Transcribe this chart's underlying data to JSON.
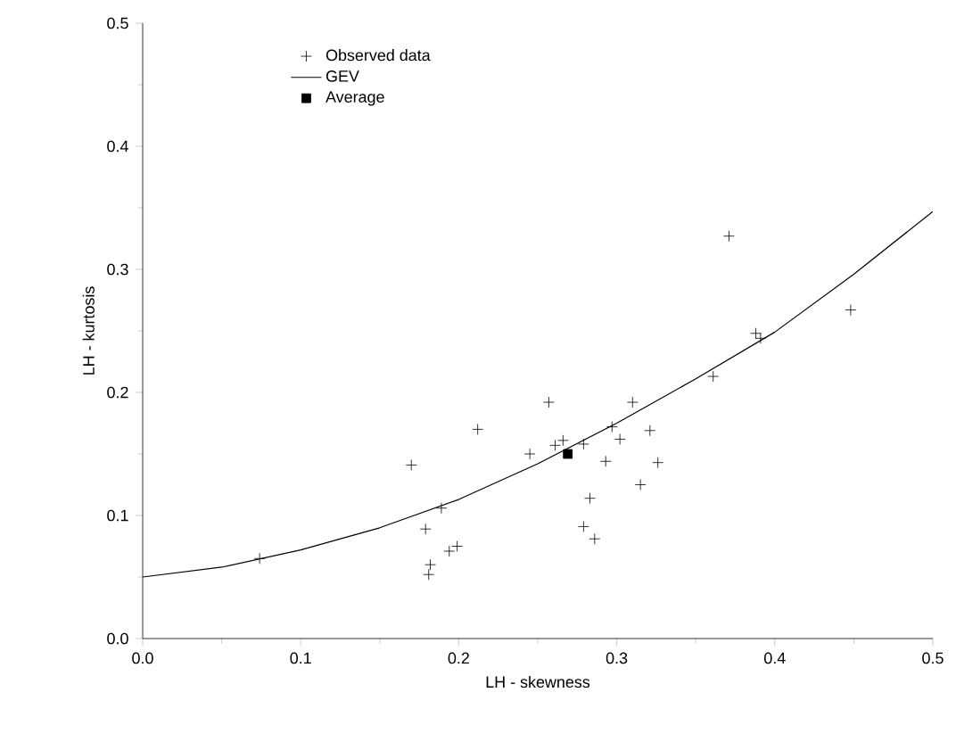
{
  "chart_data": {
    "type": "scatter",
    "xlabel": "LH - skewness",
    "ylabel": "LH - kurtosis",
    "xlim": [
      0,
      0.5
    ],
    "ylim": [
      0,
      0.5
    ],
    "xticks": [
      {
        "value": 0,
        "label": "0.0"
      },
      0.1,
      0.2,
      0.3,
      0.4,
      0.5
    ],
    "yticks": [
      {
        "value": 0,
        "label": "0.0"
      },
      0.1,
      0.2,
      0.3,
      0.4,
      0.5
    ],
    "legend": "top left",
    "grid": false,
    "series": [
      {
        "name": "Observed data",
        "marker": "cross",
        "color": "#000000",
        "x": [
          0.074,
          0.17,
          0.179,
          0.182,
          0.181,
          0.189,
          0.194,
          0.199,
          0.212,
          0.245,
          0.257,
          0.261,
          0.266,
          0.279,
          0.283,
          0.279,
          0.286,
          0.293,
          0.297,
          0.302,
          0.31,
          0.315,
          0.321,
          0.326,
          0.361,
          0.371,
          0.388,
          0.391,
          0.448
        ],
        "values": [
          0.065,
          0.141,
          0.089,
          0.06,
          0.052,
          0.106,
          0.071,
          0.075,
          0.17,
          0.15,
          0.192,
          0.157,
          0.161,
          0.158,
          0.114,
          0.091,
          0.081,
          0.144,
          0.172,
          0.162,
          0.192,
          0.125,
          0.169,
          0.143,
          0.213,
          0.327,
          0.248,
          0.244,
          0.267
        ]
      },
      {
        "name": "GEV",
        "type": "line",
        "marker": "none",
        "line_style": "solid",
        "color": "#000000",
        "x": [
          0,
          0.05,
          0.1,
          0.15,
          0.2,
          0.25,
          0.3,
          0.35,
          0.4,
          0.45,
          0.5
        ],
        "values": [
          0.05,
          0.058,
          0.072,
          0.09,
          0.113,
          0.142,
          0.175,
          0.211,
          0.249,
          0.296,
          0.347
        ]
      },
      {
        "name": "Average",
        "marker": "square",
        "color": "#000000",
        "x": [
          0.269
        ],
        "values": [
          0.15
        ]
      }
    ]
  }
}
